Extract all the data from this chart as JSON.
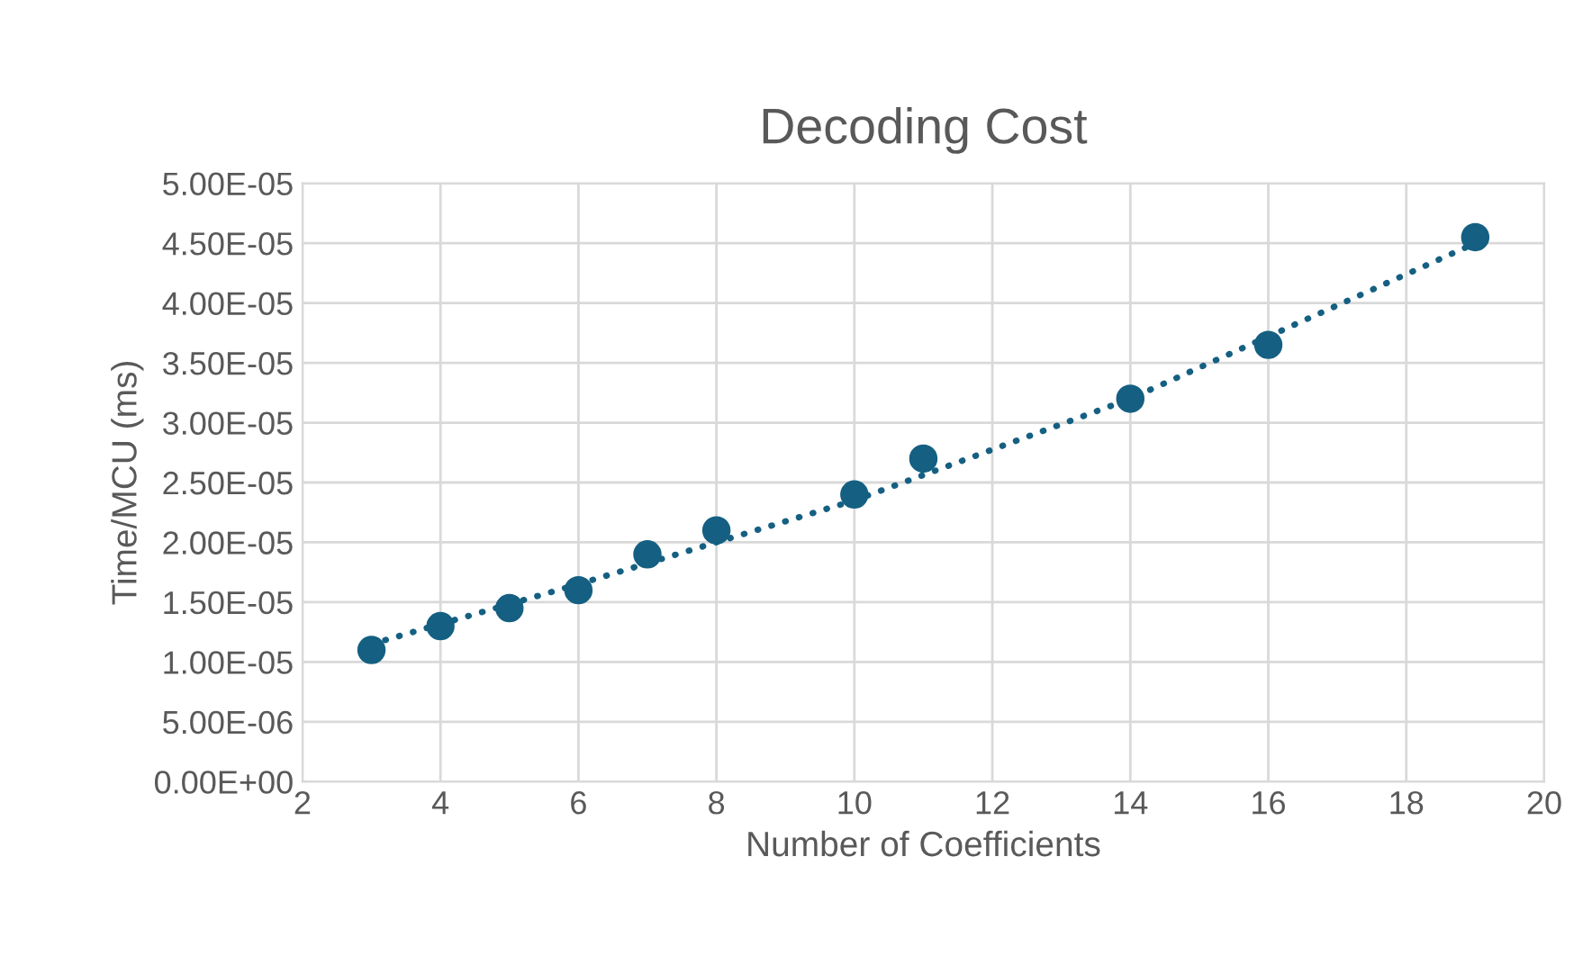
{
  "chart_data": {
    "type": "scatter",
    "title": "Decoding Cost",
    "xlabel": "Number of Coefficients",
    "ylabel": "Time/MCU (ms)",
    "x": [
      3,
      4,
      5,
      6,
      7,
      8,
      10,
      11,
      14,
      16,
      19
    ],
    "series": [
      {
        "color": "#156082",
        "marker": "circle",
        "values": [
          1.1e-05,
          1.3e-05,
          1.45e-05,
          1.6e-05,
          1.9e-05,
          2.1e-05,
          2.4e-05,
          2.7e-05,
          3.2e-05,
          3.65e-05,
          4.55e-05
        ]
      },
      {
        "type": "line",
        "color": "#156082",
        "line_style": "dotted",
        "marker": "none",
        "x": [
          3,
          6,
          10,
          14,
          19
        ],
        "values": [
          1.15e-05,
          1.65e-05,
          2.35e-05,
          3.2e-05,
          4.5e-05
        ]
      }
    ],
    "xlim": [
      2,
      20
    ],
    "xticks": [
      2,
      4,
      6,
      8,
      10,
      12,
      14,
      16,
      18,
      20
    ],
    "ylim": [
      0,
      5e-05
    ],
    "yticks": [
      {
        "value": 0,
        "label": "0.00E+00"
      },
      {
        "value": 5e-06,
        "label": "5.00E-06"
      },
      {
        "value": 1e-05,
        "label": "1.00E-05"
      },
      {
        "value": 1.5e-05,
        "label": "1.50E-05"
      },
      {
        "value": 2e-05,
        "label": "2.00E-05"
      },
      {
        "value": 2.5e-05,
        "label": "2.50E-05"
      },
      {
        "value": 3e-05,
        "label": "3.00E-05"
      },
      {
        "value": 3.5e-05,
        "label": "3.50E-05"
      },
      {
        "value": 4e-05,
        "label": "4.00E-05"
      },
      {
        "value": 4.5e-05,
        "label": "4.50E-05"
      },
      {
        "value": 5e-05,
        "label": "5.00E-05"
      }
    ],
    "grid": true
  }
}
